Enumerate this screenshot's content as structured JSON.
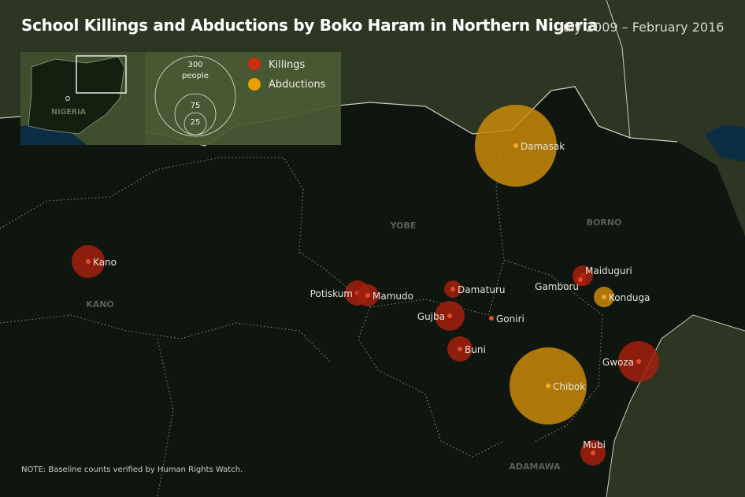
{
  "title": "School Killings and Abductions by Boko Haram in Northern Nigeria",
  "subtitle": "July 2009 – February 2016",
  "note": {
    "label": "NOTE:",
    "text": "Baseline counts verified by Human Rights Watch."
  },
  "colors": {
    "killings": "#b0200c",
    "abductions": "#d89a10",
    "land": "#0f150f",
    "outside": "#2c3622",
    "water": "#0d2d45"
  },
  "legend": {
    "inset_label": "NIGERIA",
    "size_300": "300",
    "size_300_unit": "people",
    "size_75": "75",
    "size_25": "25",
    "killings": "Killings",
    "abductions": "Abductions"
  },
  "regions": [
    "YOBE",
    "BORNO",
    "KANO",
    "ADAMAWA"
  ],
  "places": [
    {
      "name": "Damasak",
      "type": "abductions"
    },
    {
      "name": "Chibok",
      "type": "abductions"
    },
    {
      "name": "Konduga",
      "type": "abductions"
    },
    {
      "name": "Kano",
      "type": "killings"
    },
    {
      "name": "Potiskum",
      "type": "killings"
    },
    {
      "name": "Mamudo",
      "type": "killings"
    },
    {
      "name": "Damaturu",
      "type": "killings"
    },
    {
      "name": "Gujba",
      "type": "killings"
    },
    {
      "name": "Goniri",
      "type": "killings"
    },
    {
      "name": "Buni",
      "type": "killings"
    },
    {
      "name": "Maiduguri",
      "type": "killings"
    },
    {
      "name": "Gamboru",
      "type": "killings"
    },
    {
      "name": "Gwoza",
      "type": "killings"
    },
    {
      "name": "Mubi",
      "type": "killings"
    }
  ]
}
